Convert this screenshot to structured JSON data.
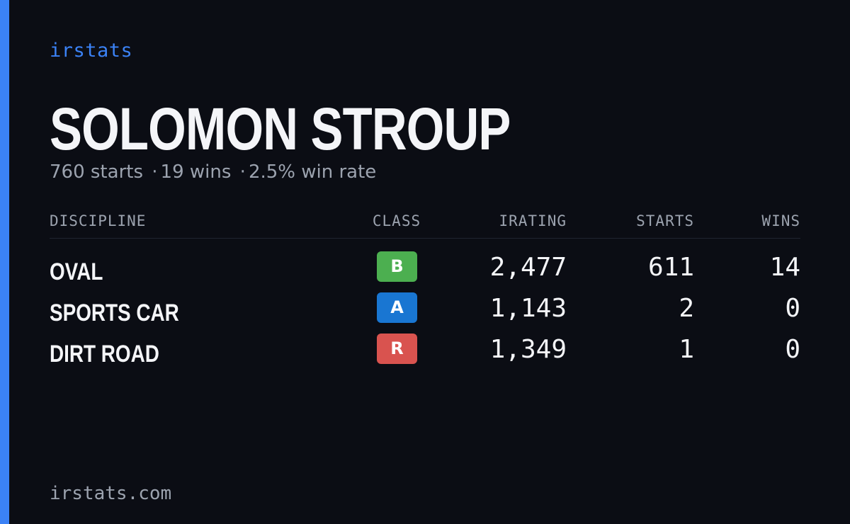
{
  "brand": "irstats",
  "driver": {
    "name": "SOLOMON STROUP",
    "starts_text": "760 starts",
    "wins_text": "19 wins",
    "win_rate_text": "2.5% win rate",
    "separator": "·"
  },
  "table": {
    "headers": {
      "discipline": "DISCIPLINE",
      "class": "CLASS",
      "irating": "IRATING",
      "starts": "STARTS",
      "wins": "WINS"
    },
    "rows": [
      {
        "discipline": "OVAL",
        "class": "B",
        "class_color": "#4caf50",
        "irating": "2,477",
        "starts": "611",
        "wins": "14"
      },
      {
        "discipline": "SPORTS CAR",
        "class": "A",
        "class_color": "#1976d2",
        "irating": "1,143",
        "starts": "2",
        "wins": "0"
      },
      {
        "discipline": "DIRT ROAD",
        "class": "R",
        "class_color": "#d9534f",
        "irating": "1,349",
        "starts": "1",
        "wins": "0"
      }
    ]
  },
  "footer": "irstats.com",
  "colors": {
    "accent": "#3b82f6",
    "background": "#0b0d14"
  }
}
